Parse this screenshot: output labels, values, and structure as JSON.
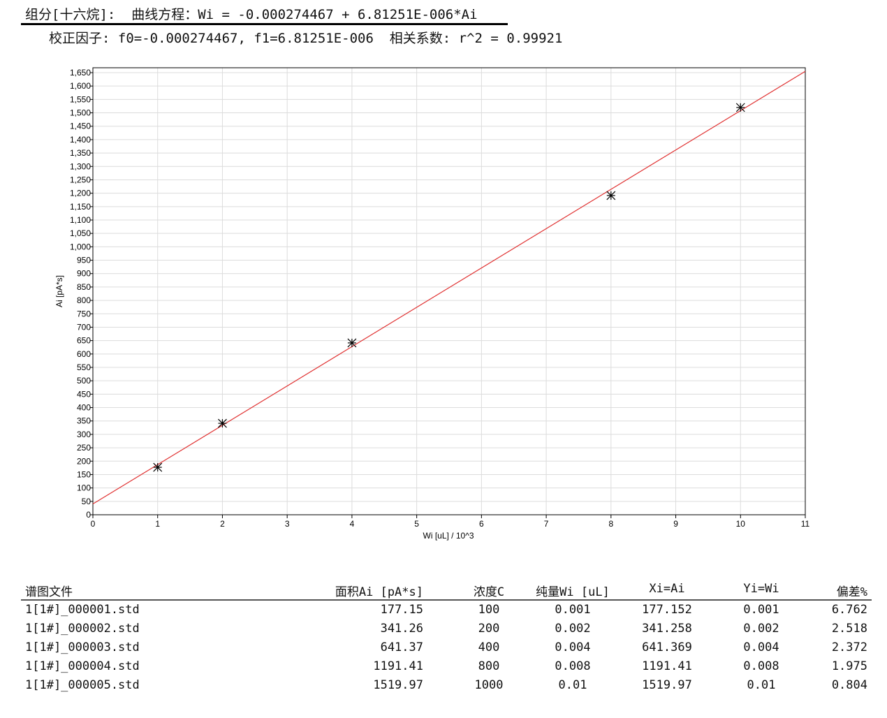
{
  "header": {
    "component_line": "组分[十六烷]:  曲线方程：Wi = -0.000274467 + 6.81251E-006*Ai",
    "factors_line": "校正因子: f0=-0.000274467, f1=6.81251E-006  相关系数: r^2 = 0.99921"
  },
  "chart_data": {
    "type": "scatter",
    "xlabel": "Wi [uL] / 10^3",
    "ylabel": "Ai [pA*s]",
    "xlim": [
      0,
      11
    ],
    "ylim": [
      0,
      1650
    ],
    "x_ticks": [
      0,
      1,
      2,
      3,
      4,
      5,
      6,
      7,
      8,
      9,
      10,
      11
    ],
    "y_ticks": [
      0,
      50,
      100,
      150,
      200,
      250,
      300,
      350,
      400,
      450,
      500,
      550,
      600,
      650,
      700,
      750,
      800,
      850,
      900,
      950,
      1000,
      1050,
      1100,
      1150,
      1200,
      1250,
      1300,
      1350,
      1400,
      1450,
      1500,
      1550,
      1600,
      1650
    ],
    "grid": true,
    "points": [
      {
        "x": 1,
        "y": 177.15
      },
      {
        "x": 2,
        "y": 341.26
      },
      {
        "x": 4,
        "y": 641.37
      },
      {
        "x": 8,
        "y": 1191.41
      },
      {
        "x": 10,
        "y": 1519.97
      }
    ],
    "fit_line": {
      "intercept_wi": -0.000274467,
      "slope_wi_per_ai": 6.81251e-06,
      "x_scale": 1000,
      "color": "#e03030"
    },
    "marker": "asterisk",
    "marker_color": "#000000"
  },
  "table": {
    "headers": [
      "谱图文件",
      "面积Ai [pA*s]",
      "浓度C",
      "纯量Wi [uL]",
      "Xi=Ai",
      "Yi=Wi",
      "偏差%"
    ],
    "rows": [
      [
        "1[1#]_000001.std",
        "177.15",
        "100",
        "0.001",
        "177.152",
        "0.001",
        "6.762"
      ],
      [
        "1[1#]_000002.std",
        "341.26",
        "200",
        "0.002",
        "341.258",
        "0.002",
        "2.518"
      ],
      [
        "1[1#]_000003.std",
        "641.37",
        "400",
        "0.004",
        "641.369",
        "0.004",
        "2.372"
      ],
      [
        "1[1#]_000004.std",
        "1191.41",
        "800",
        "0.008",
        "1191.41",
        "0.008",
        "1.975"
      ],
      [
        "1[1#]_000005.std",
        "1519.97",
        "1000",
        "0.01",
        "1519.97",
        "0.01",
        "0.804"
      ]
    ]
  }
}
